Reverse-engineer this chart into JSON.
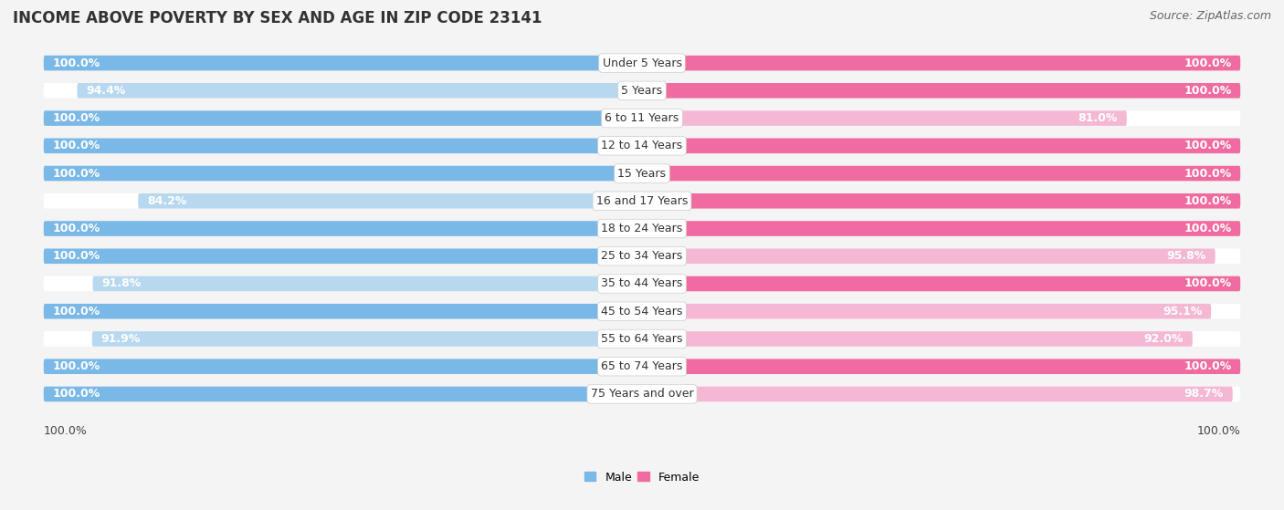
{
  "title": "INCOME ABOVE POVERTY BY SEX AND AGE IN ZIP CODE 23141",
  "source": "Source: ZipAtlas.com",
  "categories": [
    "Under 5 Years",
    "5 Years",
    "6 to 11 Years",
    "12 to 14 Years",
    "15 Years",
    "16 and 17 Years",
    "18 to 24 Years",
    "25 to 34 Years",
    "35 to 44 Years",
    "45 to 54 Years",
    "55 to 64 Years",
    "65 to 74 Years",
    "75 Years and over"
  ],
  "male_values": [
    100.0,
    94.4,
    100.0,
    100.0,
    100.0,
    84.2,
    100.0,
    100.0,
    91.8,
    100.0,
    91.9,
    100.0,
    100.0
  ],
  "female_values": [
    100.0,
    100.0,
    81.0,
    100.0,
    100.0,
    100.0,
    100.0,
    95.8,
    100.0,
    95.1,
    92.0,
    100.0,
    98.7
  ],
  "male_full_color": "#7ab8e8",
  "male_light_color": "#b8d8f0",
  "female_full_color": "#f06ba0",
  "female_light_color": "#f5b8d4",
  "bg_color": "#f4f4f4",
  "bar_bg_color": "#e0e0e0",
  "white_color": "#ffffff",
  "title_fontsize": 12,
  "value_fontsize": 9,
  "cat_fontsize": 9,
  "source_fontsize": 9,
  "legend_fontsize": 9,
  "x_axis_left": 100.0,
  "x_axis_right": 100.0
}
